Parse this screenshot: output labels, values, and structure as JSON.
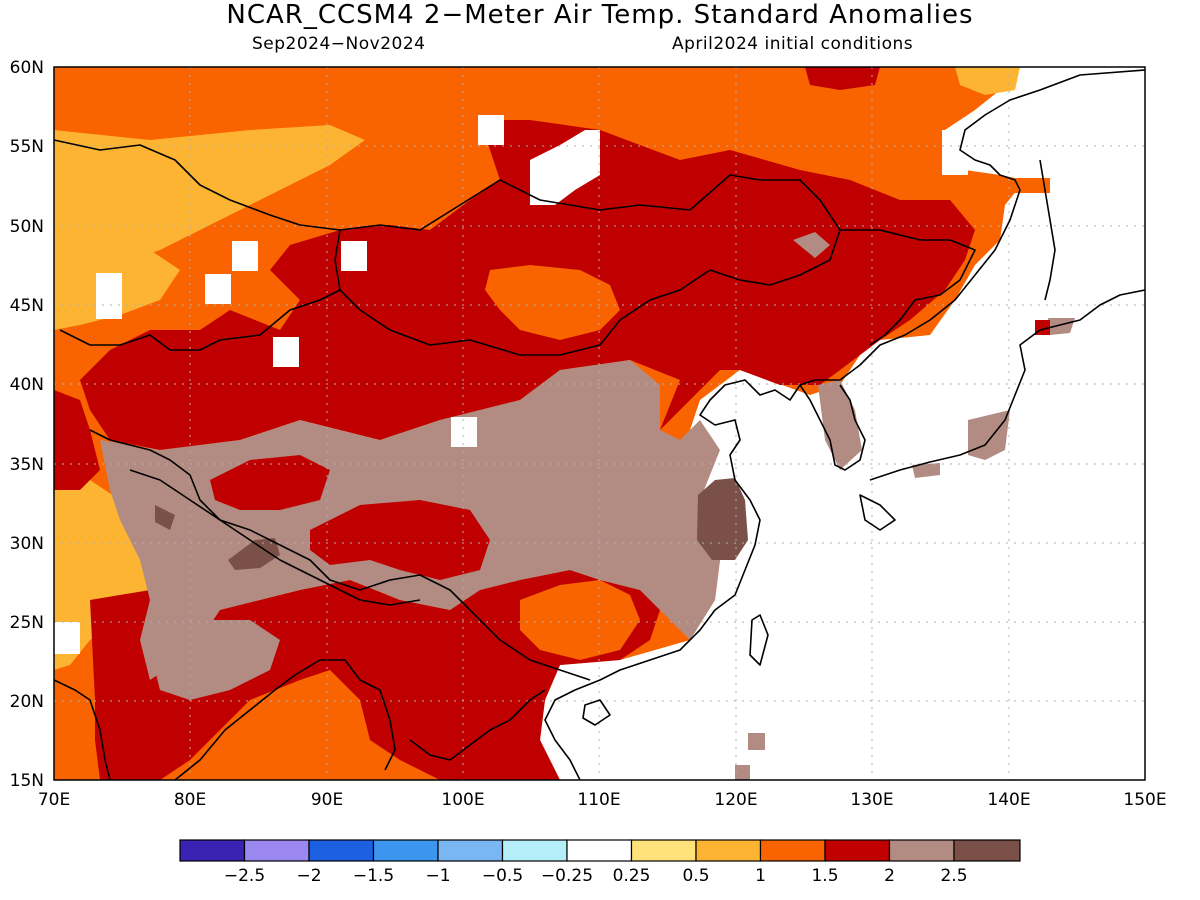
{
  "title": "NCAR_CCSM4 2−Meter Air Temp. Standard Anomalies",
  "subtitle_left": "Sep2024−Nov2024",
  "subtitle_right": "April2024 initial conditions",
  "map": {
    "lat_labels": [
      "60N",
      "55N",
      "50N",
      "45N",
      "40N",
      "35N",
      "30N",
      "25N",
      "20N",
      "15N"
    ],
    "lon_labels": [
      "70E",
      "80E",
      "90E",
      "100E",
      "110E",
      "120E",
      "130E",
      "140E",
      "150E"
    ],
    "lon_range": [
      70,
      150
    ],
    "lat_range": [
      15,
      60
    ],
    "grid": true
  },
  "colorbar": {
    "labels": [
      "−2.5",
      "−2",
      "−1.5",
      "−1",
      "−0.5",
      "−0.25",
      "0.25",
      "0.5",
      "1",
      "1.5",
      "2",
      "2.5"
    ],
    "colors": [
      "#3a22b2",
      "#9a88f0",
      "#1c5fe0",
      "#3c96f0",
      "#7ab6f2",
      "#b4eef8",
      "#ffffff",
      "#ffe27a",
      "#fcb432",
      "#fa6400",
      "#c00000",
      "#b28c82",
      "#7a5048"
    ]
  },
  "legend_colors": {
    "c050": "#fcb432",
    "c100": "#fa6400",
    "c150": "#c00000",
    "c200": "#b28c82",
    "c250": "#7a5048"
  }
}
